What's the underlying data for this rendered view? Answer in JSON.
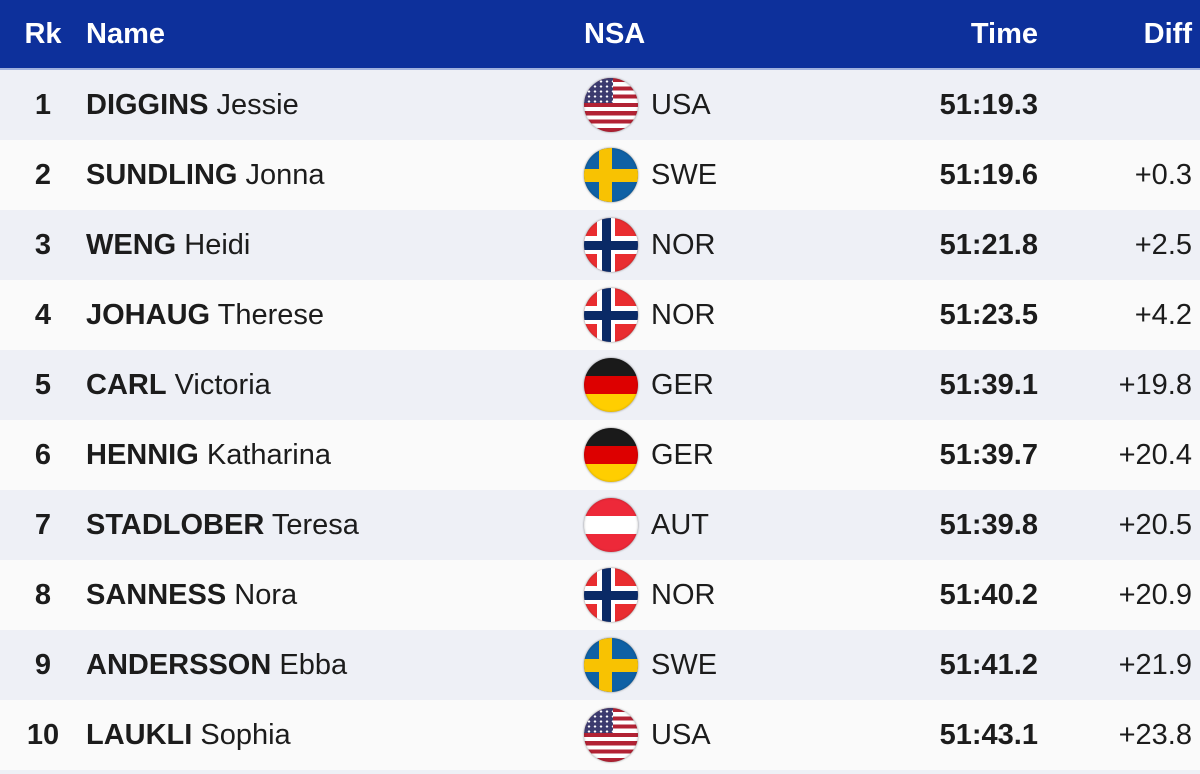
{
  "colors": {
    "header_bg": "#0d309b",
    "header_text": "#ffffff",
    "row_odd_bg": "#eef0f6",
    "row_even_bg": "#fafafa",
    "row_text": "#1c1c1c"
  },
  "table": {
    "columns": {
      "rank": "Rk",
      "name": "Name",
      "nsa": "NSA",
      "time": "Time",
      "diff": "Diff"
    },
    "rows": [
      {
        "rank": "1",
        "surname": "DIGGINS",
        "given": "Jessie",
        "nsa": "USA",
        "flag": "usa-flag-icon",
        "time": "51:19.3",
        "diff": ""
      },
      {
        "rank": "2",
        "surname": "SUNDLING",
        "given": "Jonna",
        "nsa": "SWE",
        "flag": "sweden-flag-icon",
        "time": "51:19.6",
        "diff": "+0.3"
      },
      {
        "rank": "3",
        "surname": "WENG",
        "given": "Heidi",
        "nsa": "NOR",
        "flag": "norway-flag-icon",
        "time": "51:21.8",
        "diff": "+2.5"
      },
      {
        "rank": "4",
        "surname": "JOHAUG",
        "given": "Therese",
        "nsa": "NOR",
        "flag": "norway-flag-icon",
        "time": "51:23.5",
        "diff": "+4.2"
      },
      {
        "rank": "5",
        "surname": "CARL",
        "given": "Victoria",
        "nsa": "GER",
        "flag": "germany-flag-icon",
        "time": "51:39.1",
        "diff": "+19.8"
      },
      {
        "rank": "6",
        "surname": "HENNIG",
        "given": "Katharina",
        "nsa": "GER",
        "flag": "germany-flag-icon",
        "time": "51:39.7",
        "diff": "+20.4"
      },
      {
        "rank": "7",
        "surname": "STADLOBER",
        "given": "Teresa",
        "nsa": "AUT",
        "flag": "austria-flag-icon",
        "time": "51:39.8",
        "diff": "+20.5"
      },
      {
        "rank": "8",
        "surname": "SANNESS",
        "given": "Nora",
        "nsa": "NOR",
        "flag": "norway-flag-icon",
        "time": "51:40.2",
        "diff": "+20.9"
      },
      {
        "rank": "9",
        "surname": "ANDERSSON",
        "given": "Ebba",
        "nsa": "SWE",
        "flag": "sweden-flag-icon",
        "time": "51:41.2",
        "diff": "+21.9"
      },
      {
        "rank": "10",
        "surname": "LAUKLI",
        "given": "Sophia",
        "nsa": "USA",
        "flag": "usa-flag-icon",
        "time": "51:43.1",
        "diff": "+23.8"
      }
    ]
  }
}
